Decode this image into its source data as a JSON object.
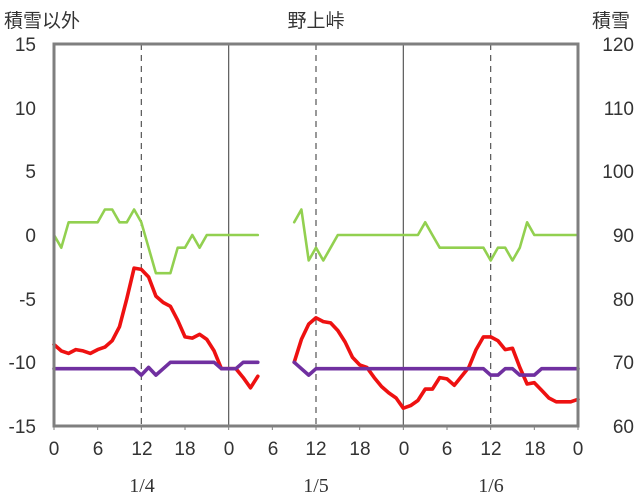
{
  "chart_data": {
    "type": "line",
    "title": "野上峠",
    "ylabel_left": "積雪以外",
    "ylabel_right": "積雪",
    "ylim_left": [
      -15,
      15
    ],
    "yticks_left": [
      "15",
      "10",
      "5",
      "0",
      "-5",
      "-10",
      "-15"
    ],
    "ylim_right": [
      60,
      120
    ],
    "yticks_right": [
      "120",
      "110",
      "100",
      "90",
      "80",
      "70",
      "60"
    ],
    "xlim": [
      0,
      72
    ],
    "xtick_labels": [
      "0",
      "6",
      "12",
      "18",
      "0",
      "6",
      "12",
      "18",
      "0",
      "6",
      "12",
      "18",
      "0"
    ],
    "day_labels": [
      "1/4",
      "1/5",
      "1/6"
    ],
    "grid": "dashed verticals at hour 12, solid day separators at hour 0",
    "series": [
      {
        "color": "#92d050",
        "axis": "right",
        "points": [
          [
            [
              0,
              90
            ],
            [
              1,
              88
            ],
            [
              2,
              92
            ],
            [
              3,
              92
            ],
            [
              4,
              92
            ],
            [
              5,
              92
            ],
            [
              6,
              92
            ],
            [
              7,
              94
            ],
            [
              8,
              94
            ],
            [
              9,
              92
            ],
            [
              10,
              92
            ],
            [
              11,
              94
            ],
            [
              12,
              92
            ],
            [
              13,
              88
            ],
            [
              14,
              84
            ],
            [
              15,
              84
            ],
            [
              16,
              84
            ],
            [
              17,
              88
            ],
            [
              18,
              88
            ],
            [
              19,
              90
            ],
            [
              20,
              88
            ],
            [
              21,
              90
            ],
            [
              22,
              90
            ],
            [
              23,
              90
            ],
            [
              24,
              90
            ],
            [
              25,
              90
            ],
            [
              26,
              90
            ],
            [
              27,
              90
            ],
            [
              28,
              90
            ]
          ],
          [
            [
              33,
              92
            ],
            [
              34,
              94
            ],
            [
              35,
              86
            ],
            [
              36,
              88
            ],
            [
              37,
              86
            ],
            [
              38,
              88
            ],
            [
              39,
              90
            ],
            [
              40,
              90
            ],
            [
              41,
              90
            ],
            [
              42,
              90
            ],
            [
              43,
              90
            ],
            [
              44,
              90
            ],
            [
              45,
              90
            ],
            [
              46,
              90
            ],
            [
              47,
              90
            ],
            [
              48,
              90
            ],
            [
              49,
              90
            ],
            [
              50,
              90
            ],
            [
              51,
              92
            ],
            [
              52,
              90
            ],
            [
              53,
              88
            ],
            [
              54,
              88
            ],
            [
              55,
              88
            ],
            [
              56,
              88
            ],
            [
              57,
              88
            ],
            [
              58,
              88
            ],
            [
              59,
              88
            ],
            [
              60,
              86
            ],
            [
              61,
              88
            ],
            [
              62,
              88
            ],
            [
              63,
              86
            ],
            [
              64,
              88
            ],
            [
              65,
              92
            ],
            [
              66,
              90
            ],
            [
              67,
              90
            ],
            [
              68,
              90
            ],
            [
              69,
              90
            ],
            [
              70,
              90
            ],
            [
              71,
              90
            ],
            [
              72,
              90
            ]
          ]
        ]
      },
      {
        "color": "#ee1111",
        "axis": "left",
        "points": [
          [
            [
              0,
              -8.6
            ],
            [
              1,
              -9.1
            ],
            [
              2,
              -9.3
            ],
            [
              3,
              -9.0
            ],
            [
              4,
              -9.1
            ],
            [
              5,
              -9.3
            ],
            [
              6,
              -9.0
            ],
            [
              7,
              -8.8
            ],
            [
              8,
              -8.3
            ],
            [
              9,
              -7.2
            ],
            [
              10,
              -5.0
            ],
            [
              11,
              -2.6
            ],
            [
              12,
              -2.7
            ],
            [
              13,
              -3.3
            ],
            [
              14,
              -4.8
            ],
            [
              15,
              -5.3
            ],
            [
              16,
              -5.6
            ],
            [
              17,
              -6.7
            ],
            [
              18,
              -8.0
            ],
            [
              19,
              -8.1
            ],
            [
              20,
              -7.8
            ],
            [
              21,
              -8.2
            ],
            [
              22,
              -9.1
            ],
            [
              23,
              -10.5
            ],
            [
              24,
              -10.5
            ],
            [
              25,
              -10.5
            ],
            [
              26,
              -11.2
            ],
            [
              27,
              -12.0
            ],
            [
              28,
              -11.1
            ]
          ],
          [
            [
              33,
              -10.0
            ],
            [
              34,
              -8.2
            ],
            [
              35,
              -7.0
            ],
            [
              36,
              -6.5
            ],
            [
              37,
              -6.8
            ],
            [
              38,
              -6.9
            ],
            [
              39,
              -7.5
            ],
            [
              40,
              -8.4
            ],
            [
              41,
              -9.6
            ],
            [
              42,
              -10.2
            ],
            [
              43,
              -10.4
            ],
            [
              44,
              -11.2
            ],
            [
              45,
              -11.9
            ],
            [
              46,
              -12.4
            ],
            [
              47,
              -12.8
            ],
            [
              48,
              -13.6
            ],
            [
              49,
              -13.4
            ],
            [
              50,
              -13.0
            ],
            [
              51,
              -12.1
            ],
            [
              52,
              -12.1
            ],
            [
              53,
              -11.2
            ],
            [
              54,
              -11.3
            ],
            [
              55,
              -11.8
            ],
            [
              56,
              -11.1
            ],
            [
              57,
              -10.4
            ],
            [
              58,
              -9.0
            ],
            [
              59,
              -8.0
            ],
            [
              60,
              -8.0
            ],
            [
              61,
              -8.3
            ],
            [
              62,
              -9.0
            ],
            [
              63,
              -8.9
            ],
            [
              64,
              -10.4
            ],
            [
              65,
              -11.7
            ],
            [
              66,
              -11.6
            ],
            [
              67,
              -12.2
            ],
            [
              68,
              -12.8
            ],
            [
              69,
              -13.1
            ],
            [
              70,
              -13.1
            ],
            [
              71,
              -13.1
            ],
            [
              72,
              -12.9
            ]
          ]
        ]
      },
      {
        "color": "#7030a0",
        "axis": "left",
        "points": [
          [
            [
              0,
              -10.5
            ],
            [
              1,
              -10.5
            ],
            [
              2,
              -10.5
            ],
            [
              3,
              -10.5
            ],
            [
              4,
              -10.5
            ],
            [
              5,
              -10.5
            ],
            [
              6,
              -10.5
            ],
            [
              7,
              -10.5
            ],
            [
              8,
              -10.5
            ],
            [
              9,
              -10.5
            ],
            [
              10,
              -10.5
            ],
            [
              11,
              -10.5
            ],
            [
              12,
              -11.0
            ],
            [
              13,
              -10.4
            ],
            [
              14,
              -11.0
            ],
            [
              15,
              -10.5
            ],
            [
              16,
              -10.0
            ],
            [
              17,
              -10.0
            ],
            [
              18,
              -10.0
            ],
            [
              19,
              -10.0
            ],
            [
              20,
              -10.0
            ],
            [
              21,
              -10.0
            ],
            [
              22,
              -10.0
            ],
            [
              23,
              -10.5
            ],
            [
              24,
              -10.5
            ],
            [
              25,
              -10.5
            ],
            [
              26,
              -10.0
            ],
            [
              27,
              -10.0
            ],
            [
              28,
              -10.0
            ]
          ],
          [
            [
              33,
              -10.0
            ],
            [
              34,
              -10.5
            ],
            [
              35,
              -11.0
            ],
            [
              36,
              -10.5
            ],
            [
              37,
              -10.5
            ],
            [
              38,
              -10.5
            ],
            [
              39,
              -10.5
            ],
            [
              40,
              -10.5
            ],
            [
              41,
              -10.5
            ],
            [
              42,
              -10.5
            ],
            [
              43,
              -10.5
            ],
            [
              44,
              -10.5
            ],
            [
              45,
              -10.5
            ],
            [
              46,
              -10.5
            ],
            [
              47,
              -10.5
            ],
            [
              48,
              -10.5
            ],
            [
              49,
              -10.5
            ],
            [
              50,
              -10.5
            ],
            [
              51,
              -10.5
            ],
            [
              52,
              -10.5
            ],
            [
              53,
              -10.5
            ],
            [
              54,
              -10.5
            ],
            [
              55,
              -10.5
            ],
            [
              56,
              -10.5
            ],
            [
              57,
              -10.5
            ],
            [
              58,
              -10.5
            ],
            [
              59,
              -10.5
            ],
            [
              60,
              -11.0
            ],
            [
              61,
              -11.0
            ],
            [
              62,
              -10.5
            ],
            [
              63,
              -10.5
            ],
            [
              64,
              -11.0
            ],
            [
              65,
              -11.0
            ],
            [
              66,
              -11.0
            ],
            [
              67,
              -10.5
            ],
            [
              68,
              -10.5
            ],
            [
              69,
              -10.5
            ],
            [
              70,
              -10.5
            ],
            [
              71,
              -10.5
            ],
            [
              72,
              -10.5
            ]
          ]
        ]
      }
    ]
  }
}
